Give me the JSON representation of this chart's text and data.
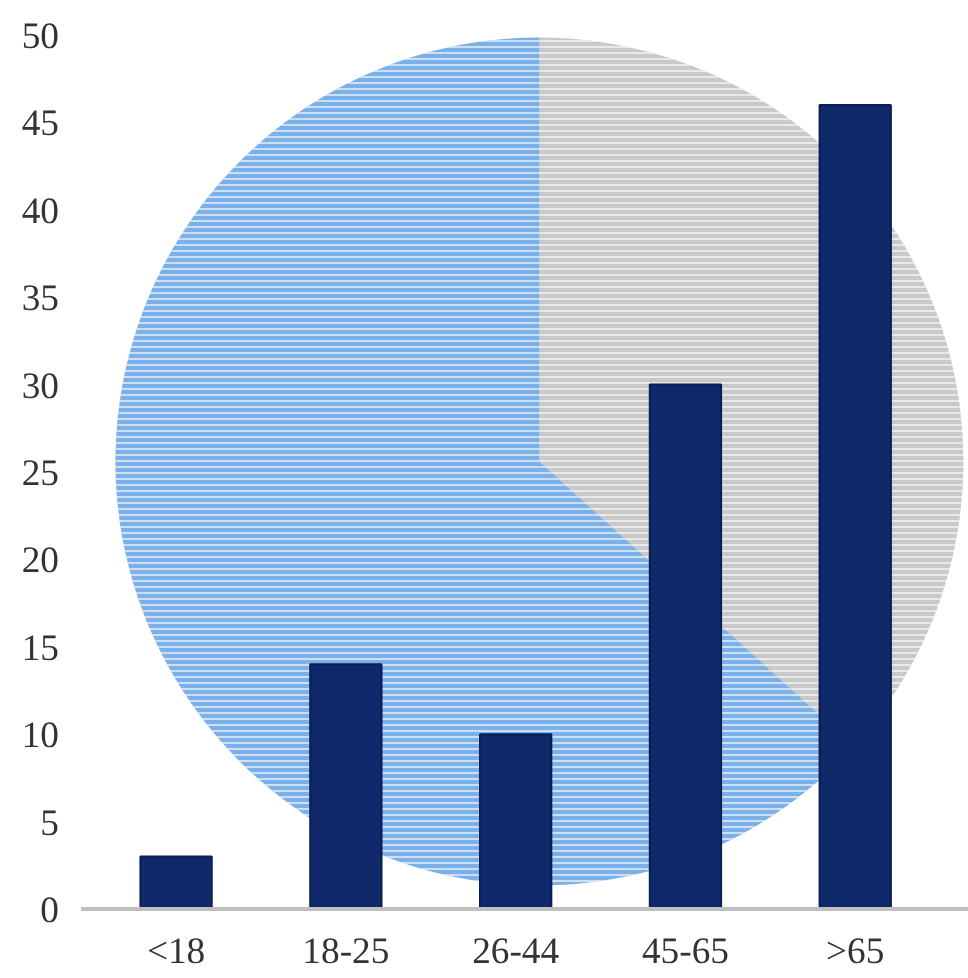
{
  "chart_data": [
    {
      "type": "bar",
      "categories": [
        "<18",
        "18-25",
        "26-44",
        "45-65",
        ">65"
      ],
      "values": [
        3,
        14,
        10,
        30,
        46
      ],
      "color": "#10296b",
      "ylim": [
        0,
        50
      ],
      "yticks": [
        0,
        5,
        10,
        15,
        20,
        25,
        30,
        35,
        40,
        45,
        50
      ],
      "grid": false
    },
    {
      "type": "pie",
      "categories": [
        null,
        null
      ],
      "values": [
        36.7,
        63.3
      ],
      "colors": [
        "#c9c9c9",
        "#7cb0e8"
      ]
    }
  ]
}
